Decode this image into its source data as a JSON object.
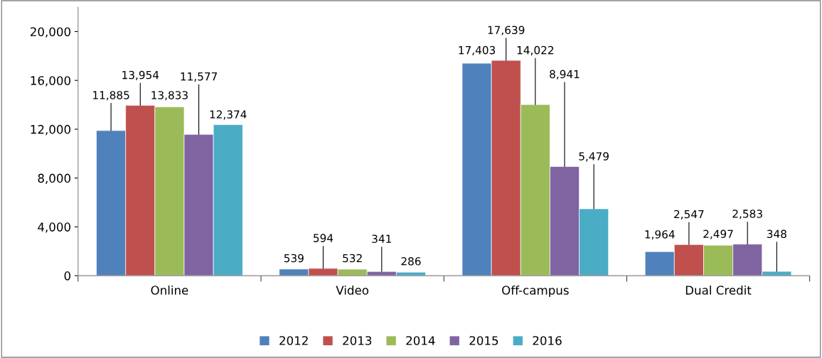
{
  "chart_data": {
    "type": "bar",
    "categories": [
      "Online",
      "Video",
      "Off-campus",
      "Dual Credit"
    ],
    "series": [
      {
        "name": "2012",
        "color": "#4f81bd",
        "values": [
          11885,
          539,
          17403,
          1964
        ],
        "value_labels": [
          "11,885",
          "539",
          "17,403",
          "1,964"
        ]
      },
      {
        "name": "2013",
        "color": "#c0504d",
        "values": [
          13954,
          594,
          17639,
          2547
        ],
        "value_labels": [
          "13,954",
          "594",
          "17,639",
          "2,547"
        ]
      },
      {
        "name": "2014",
        "color": "#9bbb59",
        "values": [
          13833,
          532,
          14022,
          2497
        ],
        "value_labels": [
          "13,833",
          "532",
          "14,022",
          "2,497"
        ]
      },
      {
        "name": "2015",
        "color": "#8064a2",
        "values": [
          11577,
          341,
          8941,
          2583
        ],
        "value_labels": [
          "11,577",
          "341",
          "8,941",
          "2,583"
        ]
      },
      {
        "name": "2016",
        "color": "#4bacc6",
        "values": [
          12374,
          286,
          5479,
          348
        ],
        "value_labels": [
          "12,374",
          "286",
          "5,479",
          "348"
        ]
      }
    ],
    "ylim": [
      0,
      22000
    ],
    "yticks": [
      {
        "value": 0,
        "label": "0"
      },
      {
        "value": 4000,
        "label": "4,000"
      },
      {
        "value": 8000,
        "label": "8,000"
      },
      {
        "value": 12000,
        "label": "12,000"
      },
      {
        "value": 16000,
        "label": "16,000"
      },
      {
        "value": 20000,
        "label": "20,000"
      }
    ],
    "grid": false,
    "legend": "bottom"
  }
}
